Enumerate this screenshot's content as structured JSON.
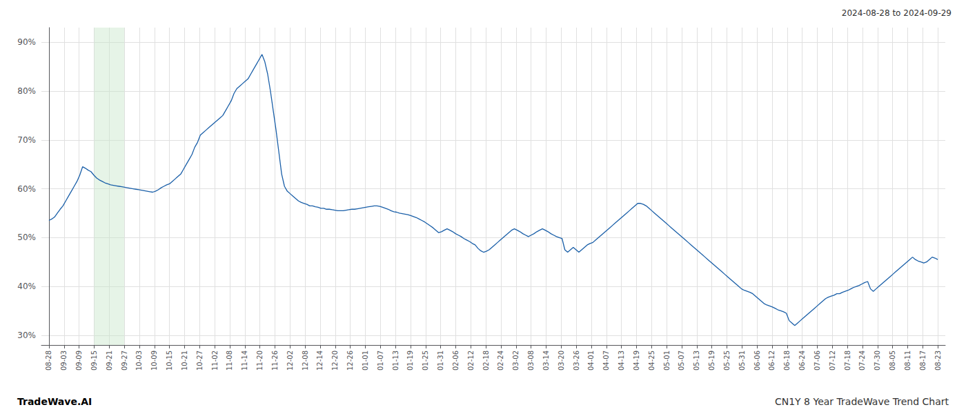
{
  "chart_data": {
    "type": "line",
    "title": "CN1Y 8 Year TradeWave Trend Chart",
    "subtitle": "2024-08-28 to 2024-09-29",
    "annotations": [
      "TradeWave.AI"
    ],
    "color": "#1a5fa8",
    "grid": true,
    "ylim": [
      28,
      93
    ],
    "yticks": [
      {
        "value": 30,
        "label": "30%"
      },
      {
        "value": 40,
        "label": "40%"
      },
      {
        "value": 50,
        "label": "50%"
      },
      {
        "value": 60,
        "label": "60%"
      },
      {
        "value": 70,
        "label": "70%"
      },
      {
        "value": 80,
        "label": "80%"
      },
      {
        "value": 90,
        "label": "90%"
      }
    ],
    "xlim": [
      -158.5,
      18861.5
    ],
    "xticks": [
      {
        "value": 0,
        "label": "08-28"
      },
      {
        "value": 317,
        "label": "09-03"
      },
      {
        "value": 634,
        "label": "09-09"
      },
      {
        "value": 951,
        "label": "09-15"
      },
      {
        "value": 1268,
        "label": "09-21"
      },
      {
        "value": 1585,
        "label": "09-27"
      },
      {
        "value": 1902,
        "label": "10-03"
      },
      {
        "value": 2219,
        "label": "10-09"
      },
      {
        "value": 2536,
        "label": "10-15"
      },
      {
        "value": 2853,
        "label": "10-21"
      },
      {
        "value": 3170,
        "label": "10-27"
      },
      {
        "value": 3487,
        "label": "11-02"
      },
      {
        "value": 3804,
        "label": "11-08"
      },
      {
        "value": 4121,
        "label": "11-14"
      },
      {
        "value": 4438,
        "label": "11-20"
      },
      {
        "value": 4755,
        "label": "11-26"
      },
      {
        "value": 5072,
        "label": "12-02"
      },
      {
        "value": 5389,
        "label": "12-08"
      },
      {
        "value": 5706,
        "label": "12-14"
      },
      {
        "value": 6023,
        "label": "12-20"
      },
      {
        "value": 6340,
        "label": "12-26"
      },
      {
        "value": 6657,
        "label": "01-01"
      },
      {
        "value": 6974,
        "label": "01-07"
      },
      {
        "value": 7291,
        "label": "01-13"
      },
      {
        "value": 7608,
        "label": "01-19"
      },
      {
        "value": 7925,
        "label": "01-25"
      },
      {
        "value": 8242,
        "label": "01-31"
      },
      {
        "value": 8559,
        "label": "02-06"
      },
      {
        "value": 8876,
        "label": "02-12"
      },
      {
        "value": 9193,
        "label": "02-18"
      },
      {
        "value": 9510,
        "label": "02-24"
      },
      {
        "value": 9827,
        "label": "03-02"
      },
      {
        "value": 10144,
        "label": "03-08"
      },
      {
        "value": 10461,
        "label": "03-14"
      },
      {
        "value": 10778,
        "label": "03-20"
      },
      {
        "value": 11095,
        "label": "03-26"
      },
      {
        "value": 11412,
        "label": "04-01"
      },
      {
        "value": 11729,
        "label": "04-07"
      },
      {
        "value": 12046,
        "label": "04-13"
      },
      {
        "value": 12363,
        "label": "04-19"
      },
      {
        "value": 12680,
        "label": "04-25"
      },
      {
        "value": 12997,
        "label": "05-01"
      },
      {
        "value": 13314,
        "label": "05-07"
      },
      {
        "value": 13631,
        "label": "05-13"
      },
      {
        "value": 13948,
        "label": "05-19"
      },
      {
        "value": 14265,
        "label": "05-25"
      },
      {
        "value": 14582,
        "label": "05-31"
      },
      {
        "value": 14899,
        "label": "06-06"
      },
      {
        "value": 15216,
        "label": "06-12"
      },
      {
        "value": 15533,
        "label": "06-18"
      },
      {
        "value": 15850,
        "label": "06-24"
      },
      {
        "value": 16167,
        "label": "07-06"
      },
      {
        "value": 16484,
        "label": "07-12"
      },
      {
        "value": 16801,
        "label": "07-18"
      },
      {
        "value": 17118,
        "label": "07-24"
      },
      {
        "value": 17435,
        "label": "07-30"
      },
      {
        "value": 17752,
        "label": "08-05"
      },
      {
        "value": 18069,
        "label": "08-11"
      },
      {
        "value": 18386,
        "label": "08-17"
      },
      {
        "value": 18703,
        "label": "08-23"
      }
    ],
    "shade": {
      "from": 951,
      "to": 1585,
      "color": "#c8e6c9"
    },
    "x": [
      0,
      59,
      118,
      177,
      236,
      295,
      354,
      413,
      472,
      531,
      590,
      649,
      708,
      767,
      826,
      885,
      944,
      1003,
      1062,
      1121,
      1180,
      1239,
      1298,
      1357,
      1416,
      1475,
      1534,
      1593,
      1652,
      1711,
      1770,
      1829,
      1888,
      1947,
      2006,
      2065,
      2124,
      2183,
      2242,
      2301,
      2360,
      2419,
      2478,
      2537,
      2596,
      2655,
      2714,
      2773,
      2832,
      2891,
      2950,
      3009,
      3068,
      3127,
      3186,
      3245,
      3304,
      3363,
      3422,
      3481,
      3540,
      3599,
      3658,
      3717,
      3776,
      3835,
      3894,
      3953,
      4012,
      4071,
      4130,
      4189,
      4248,
      4307,
      4366,
      4425,
      4484,
      4543,
      4602,
      4661,
      4720,
      4779,
      4838,
      4897,
      4956,
      5015,
      5074,
      5133,
      5192,
      5251,
      5310,
      5369,
      5428,
      5487,
      5546,
      5605,
      5664,
      5723,
      5782,
      5841,
      5900,
      5959,
      6018,
      6077,
      6136,
      6195,
      6254,
      6313,
      6372,
      6431,
      6490,
      6549,
      6608,
      6667,
      6726,
      6785,
      6844,
      6903,
      6962,
      7021,
      7080,
      7139,
      7198,
      7257,
      7316,
      7375,
      7434,
      7493,
      7552,
      7611,
      7670,
      7729,
      7788,
      7847,
      7906,
      7965,
      8024,
      8083,
      8142,
      8201,
      8260,
      8319,
      8378,
      8437,
      8496,
      8555,
      8614,
      8673,
      8732,
      8791,
      8850,
      8909,
      8968,
      9027,
      9086,
      9145,
      9204,
      9263,
      9322,
      9381,
      9440,
      9499,
      9558,
      9617,
      9676,
      9735,
      9794,
      9853,
      9912,
      9971,
      10030,
      10089,
      10148,
      10207,
      10266,
      10325,
      10384,
      10443,
      10502,
      10561,
      10620,
      10679,
      10738,
      10797,
      10856,
      10915,
      10974,
      11033,
      11092,
      11151,
      11210,
      11269,
      11328,
      11387,
      11446,
      11505,
      11564,
      11623,
      11682,
      11741,
      11800,
      11859,
      11918,
      11977,
      12036,
      12095,
      12154,
      12213,
      12272,
      12331,
      12390,
      12449,
      12508,
      12567,
      12626,
      12685,
      12744,
      12803,
      12862,
      12921,
      12980,
      13039,
      13098,
      13157,
      13216,
      13275,
      13334,
      13393,
      13452,
      13511,
      13570,
      13629,
      13688,
      13747,
      13806,
      13865,
      13924,
      13983,
      14042,
      14101,
      14160,
      14219,
      14278,
      14337,
      14396,
      14455,
      14514,
      14573,
      14632,
      14691,
      14750,
      14809,
      14868,
      14927,
      14986,
      15045,
      15104,
      15163,
      15222,
      15281,
      15340,
      15399,
      15458,
      15517,
      15576,
      15635,
      15694,
      15753,
      15812,
      15871,
      15930,
      15989,
      16048,
      16107,
      16166,
      16225,
      16284,
      16343,
      16402,
      16461,
      16520,
      16579,
      16638,
      16697,
      16756,
      16815,
      16874,
      16933,
      16992,
      17051,
      17110,
      17169,
      17228,
      17287,
      17346,
      17405,
      17464,
      17523,
      17582,
      17641,
      17700,
      17759,
      17818,
      17877,
      17936,
      17995,
      18054,
      18113,
      18172,
      18231,
      18290,
      18349,
      18408,
      18467,
      18526,
      18585,
      18644,
      18703
    ],
    "values": [
      53.5,
      53.8,
      54.2,
      55.0,
      55.8,
      56.5,
      57.5,
      58.5,
      59.5,
      60.5,
      61.5,
      62.8,
      64.5,
      64.2,
      63.8,
      63.5,
      62.8,
      62.2,
      61.8,
      61.5,
      61.2,
      61.0,
      60.8,
      60.7,
      60.6,
      60.5,
      60.4,
      60.3,
      60.2,
      60.1,
      60.0,
      59.9,
      59.8,
      59.7,
      59.6,
      59.5,
      59.4,
      59.3,
      59.5,
      59.8,
      60.2,
      60.5,
      60.8,
      61.0,
      61.5,
      62.0,
      62.5,
      63.0,
      64.0,
      65.0,
      66.0,
      67.0,
      68.5,
      69.5,
      71.0,
      71.5,
      72.0,
      72.5,
      73.0,
      73.5,
      74.0,
      74.5,
      75.0,
      76.0,
      77.0,
      78.0,
      79.5,
      80.5,
      81.0,
      81.5,
      82.0,
      82.5,
      83.5,
      84.5,
      85.5,
      86.5,
      87.5,
      86.0,
      83.5,
      80.0,
      76.0,
      72.0,
      67.5,
      63.0,
      60.5,
      59.5,
      59.0,
      58.5,
      58.0,
      57.5,
      57.2,
      57.0,
      56.8,
      56.5,
      56.5,
      56.3,
      56.2,
      56.0,
      56.0,
      55.8,
      55.8,
      55.7,
      55.6,
      55.5,
      55.5,
      55.5,
      55.6,
      55.7,
      55.8,
      55.8,
      55.9,
      56.0,
      56.1,
      56.2,
      56.3,
      56.4,
      56.5,
      56.5,
      56.4,
      56.2,
      56.0,
      55.8,
      55.5,
      55.3,
      55.2,
      55.0,
      54.9,
      54.8,
      54.7,
      54.5,
      54.3,
      54.1,
      53.8,
      53.5,
      53.2,
      52.8,
      52.4,
      52.0,
      51.5,
      51.0,
      51.2,
      51.5,
      51.8,
      51.5,
      51.2,
      50.8,
      50.5,
      50.2,
      49.8,
      49.5,
      49.2,
      48.8,
      48.5,
      47.8,
      47.3,
      47.0,
      47.2,
      47.5,
      48.0,
      48.5,
      49.0,
      49.5,
      50.0,
      50.5,
      51.0,
      51.5,
      51.8,
      51.5,
      51.2,
      50.8,
      50.5,
      50.2,
      50.5,
      50.8,
      51.2,
      51.5,
      51.8,
      51.5,
      51.2,
      50.8,
      50.5,
      50.2,
      50.0,
      49.8,
      47.5,
      47.0,
      47.5,
      48.0,
      47.5,
      47.0,
      47.5,
      48.0,
      48.5,
      48.8,
      49.0,
      49.5,
      50.0,
      50.5,
      51.0,
      51.5,
      52.0,
      52.5,
      53.0,
      53.5,
      54.0,
      54.5,
      55.0,
      55.5,
      56.0,
      56.5,
      57.0,
      57.0,
      56.8,
      56.5,
      56.0,
      55.5,
      55.0,
      54.5,
      54.0,
      53.5,
      53.0,
      52.5,
      52.0,
      51.5,
      51.0,
      50.5,
      50.0,
      49.5,
      49.0,
      48.5,
      48.0,
      47.5,
      47.0,
      46.5,
      46.0,
      45.5,
      45.0,
      44.5,
      44.0,
      43.5,
      43.0,
      42.5,
      42.0,
      41.5,
      41.0,
      40.5,
      40.0,
      39.5,
      39.2,
      39.0,
      38.8,
      38.5,
      38.0,
      37.5,
      37.0,
      36.5,
      36.2,
      36.0,
      35.8,
      35.5,
      35.2,
      35.0,
      34.8,
      34.5,
      33.0,
      32.5,
      32.0,
      32.5,
      33.0,
      33.5,
      34.0,
      34.5,
      35.0,
      35.5,
      36.0,
      36.5,
      37.0,
      37.5,
      37.8,
      38.0,
      38.2,
      38.5,
      38.5,
      38.8,
      39.0,
      39.2,
      39.5,
      39.8,
      40.0,
      40.2,
      40.5,
      40.8,
      41.0,
      39.5,
      39.0,
      39.5,
      40.0,
      40.5,
      41.0,
      41.5,
      42.0,
      42.5,
      43.0,
      43.5,
      44.0,
      44.5,
      45.0,
      45.5,
      46.0,
      45.5,
      45.2,
      45.0,
      44.8,
      45.0,
      45.5,
      46.0,
      45.8,
      45.5
    ]
  }
}
